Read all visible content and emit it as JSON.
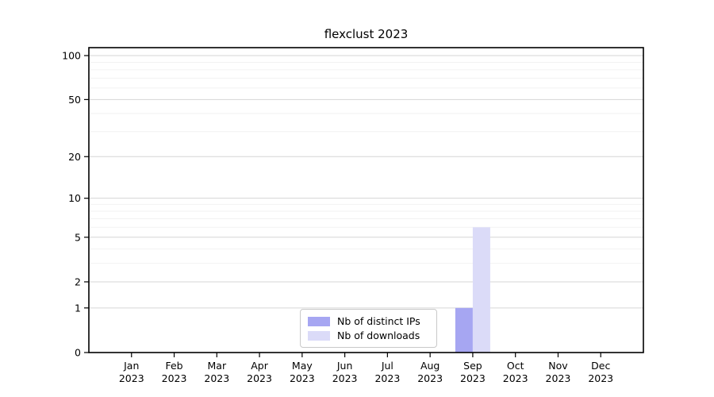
{
  "chart_data": {
    "type": "bar",
    "title": "flexclust 2023",
    "categories": [
      "Jan 2023",
      "Feb 2023",
      "Mar 2023",
      "Apr 2023",
      "May 2023",
      "Jun 2023",
      "Jul 2023",
      "Aug 2023",
      "Sep 2023",
      "Oct 2023",
      "Nov 2023",
      "Dec 2023"
    ],
    "series": [
      {
        "name": "Nb of distinct IPs",
        "color": "#a6a6f2",
        "values": [
          0,
          0,
          0,
          0,
          0,
          0,
          0,
          0,
          1,
          0,
          0,
          0
        ]
      },
      {
        "name": "Nb of downloads",
        "color": "#dbdbf8",
        "values": [
          0,
          0,
          0,
          0,
          0,
          0,
          0,
          0,
          6,
          0,
          0,
          0
        ]
      }
    ],
    "xlabel": "",
    "ylabel": "",
    "yticks": [
      0,
      1,
      2,
      5,
      10,
      20,
      50,
      100
    ],
    "minor_gridlines": [
      3,
      4,
      6,
      7,
      8,
      9,
      30,
      40,
      60,
      70,
      80,
      90
    ],
    "scale": "log1p",
    "ylim": [
      0,
      114
    ],
    "grid": true,
    "legend_position": "inside-bottom-center"
  },
  "colors": {
    "background": "#ffffff",
    "axis": "#000000",
    "grid_major": "#d6d6d6",
    "grid_minor": "#f2f2f2",
    "text": "#000000",
    "legend_border": "#c9c9c9"
  }
}
